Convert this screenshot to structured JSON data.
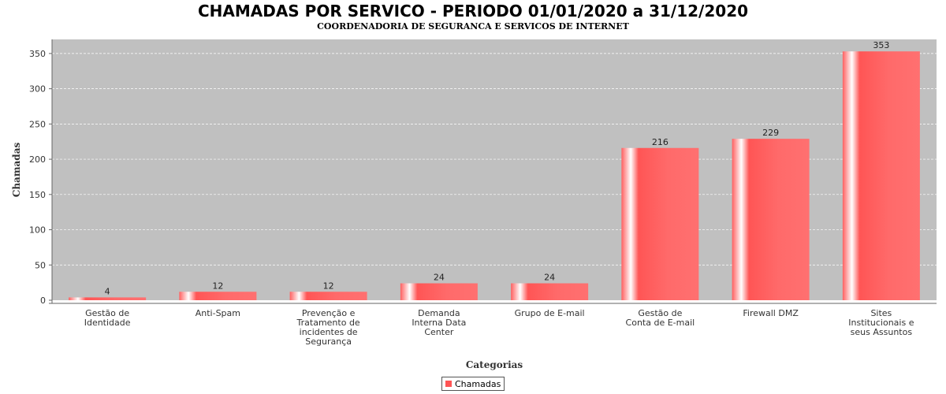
{
  "chart_data": {
    "type": "bar",
    "title": "CHAMADAS POR SERVICO - PERIODO 01/01/2020 a 31/12/2020",
    "subtitle": "COORDENADORIA DE SEGURANCA E SERVICOS DE INTERNET",
    "xlabel": "Categorias",
    "ylabel": "Chamadas",
    "ylim": [
      0,
      370
    ],
    "yticks": [
      0,
      50,
      100,
      150,
      200,
      250,
      300,
      350
    ],
    "grid": true,
    "legend_position": "bottom",
    "categories": [
      [
        "Gestão de",
        "Identidade"
      ],
      [
        "Anti-Spam"
      ],
      [
        "Prevenção e",
        "Tratamento de",
        "incidentes de",
        "Segurança"
      ],
      [
        "Demanda",
        "Interna Data",
        "Center"
      ],
      [
        "Grupo de E-mail"
      ],
      [
        "Gestão de",
        "Conta de E-mail"
      ],
      [
        "Firewall DMZ"
      ],
      [
        "Sites",
        "Institucionais e",
        "seus Assuntos"
      ]
    ],
    "series": [
      {
        "name": "Chamadas",
        "color": "#ff5555",
        "values": [
          4,
          12,
          12,
          24,
          24,
          216,
          229,
          353
        ]
      }
    ],
    "plot_background": "#c0c0c0"
  }
}
